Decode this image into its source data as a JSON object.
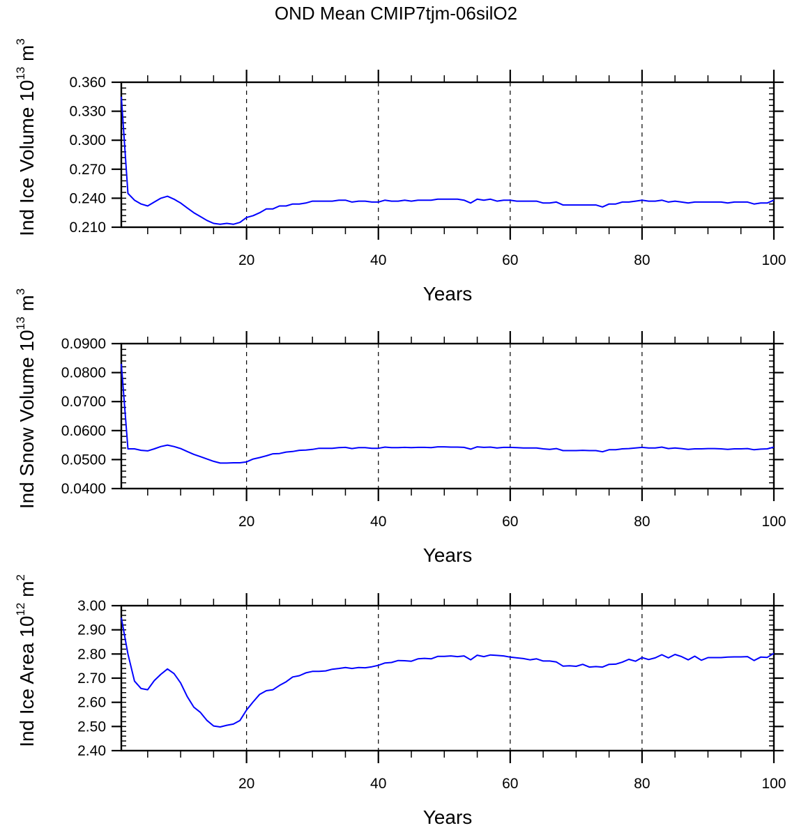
{
  "title": "OND Mean CMIP7tjm-06silO2",
  "line_color": "#0000ff",
  "chart_data": [
    {
      "type": "line",
      "title": "OND Mean CMIP7tjm-06silO2",
      "xlabel": "Years",
      "ylabel": "Ind Ice Volume 10",
      "ylabel_exp": "13",
      "ylabel_unit": " m",
      "ylabel_unit_exp": "3",
      "xlim": [
        1,
        100
      ],
      "ylim": [
        0.21,
        0.36
      ],
      "xticks": [
        20,
        40,
        60,
        80,
        100
      ],
      "xtick_labels": [
        "20",
        "40",
        "60",
        "80",
        "100"
      ],
      "yticks": [
        0.21,
        0.24,
        0.27,
        0.3,
        0.33,
        0.36
      ],
      "ytick_labels": [
        "0.210",
        "0.240",
        "0.270",
        "0.300",
        "0.330",
        "0.360"
      ],
      "yminor": 0.006,
      "xminor": 5,
      "vgrid": [
        20,
        40,
        60,
        80
      ],
      "values": [
        0.345,
        0.245,
        0.238,
        0.234,
        0.232,
        0.236,
        0.24,
        0.242,
        0.239,
        0.235,
        0.23,
        0.225,
        0.221,
        0.217,
        0.214,
        0.213,
        0.214,
        0.213,
        0.215,
        0.22,
        0.222,
        0.225,
        0.229,
        0.229,
        0.232,
        0.232,
        0.234,
        0.234,
        0.235,
        0.237,
        0.237,
        0.237,
        0.237,
        0.238,
        0.238,
        0.236,
        0.237,
        0.237,
        0.236,
        0.236,
        0.238,
        0.237,
        0.237,
        0.238,
        0.237,
        0.238,
        0.238,
        0.238,
        0.239,
        0.239,
        0.239,
        0.239,
        0.238,
        0.235,
        0.239,
        0.238,
        0.239,
        0.237,
        0.238,
        0.238,
        0.237,
        0.237,
        0.237,
        0.237,
        0.235,
        0.235,
        0.236,
        0.233,
        0.233,
        0.233,
        0.233,
        0.233,
        0.233,
        0.231,
        0.234,
        0.234,
        0.236,
        0.236,
        0.237,
        0.238,
        0.237,
        0.237,
        0.238,
        0.236,
        0.237,
        0.236,
        0.235,
        0.236,
        0.236,
        0.236,
        0.236,
        0.236,
        0.235,
        0.236,
        0.236,
        0.236,
        0.234,
        0.235,
        0.235,
        0.238
      ]
    },
    {
      "type": "line",
      "xlabel": "Years",
      "ylabel": "Ind Snow Volume 10",
      "ylabel_exp": "13",
      "ylabel_unit": " m",
      "ylabel_unit_exp": "3",
      "xlim": [
        1,
        100
      ],
      "ylim": [
        0.04,
        0.09
      ],
      "xticks": [
        20,
        40,
        60,
        80,
        100
      ],
      "xtick_labels": [
        "20",
        "40",
        "60",
        "80",
        "100"
      ],
      "yticks": [
        0.04,
        0.05,
        0.06,
        0.07,
        0.08,
        0.09
      ],
      "ytick_labels": [
        "0.0400",
        "0.0500",
        "0.0600",
        "0.0700",
        "0.0800",
        "0.0900"
      ],
      "yminor": 0.002,
      "xminor": 5,
      "vgrid": [
        20,
        40,
        60,
        80
      ],
      "values": [
        0.083,
        0.0537,
        0.0537,
        0.0532,
        0.053,
        0.0537,
        0.0545,
        0.055,
        0.0545,
        0.0538,
        0.0528,
        0.0518,
        0.051,
        0.0502,
        0.0494,
        0.0488,
        0.0488,
        0.0489,
        0.0489,
        0.0492,
        0.0502,
        0.0507,
        0.0513,
        0.052,
        0.0521,
        0.0526,
        0.0528,
        0.0532,
        0.0533,
        0.0535,
        0.0539,
        0.0539,
        0.0539,
        0.0541,
        0.0542,
        0.0538,
        0.0541,
        0.0541,
        0.0539,
        0.0539,
        0.0543,
        0.0541,
        0.0541,
        0.0542,
        0.0541,
        0.0542,
        0.0542,
        0.0541,
        0.0544,
        0.0544,
        0.0543,
        0.0543,
        0.0542,
        0.0536,
        0.0544,
        0.0542,
        0.0543,
        0.054,
        0.0542,
        0.0542,
        0.0541,
        0.054,
        0.054,
        0.054,
        0.0537,
        0.0535,
        0.0538,
        0.0531,
        0.0531,
        0.0531,
        0.0532,
        0.0531,
        0.0531,
        0.0527,
        0.0534,
        0.0534,
        0.0537,
        0.0538,
        0.054,
        0.0542,
        0.054,
        0.054,
        0.0543,
        0.0538,
        0.054,
        0.0538,
        0.0535,
        0.0537,
        0.0537,
        0.0538,
        0.0538,
        0.0537,
        0.0535,
        0.0537,
        0.0537,
        0.0538,
        0.0534,
        0.0536,
        0.0537,
        0.0543
      ]
    },
    {
      "type": "line",
      "xlabel": "Years",
      "ylabel": "Ind Ice Area 10",
      "ylabel_exp": "12",
      "ylabel_unit": " m",
      "ylabel_unit_exp": "2",
      "xlim": [
        1,
        100
      ],
      "ylim": [
        2.4,
        3.0
      ],
      "xticks": [
        20,
        40,
        60,
        80,
        100
      ],
      "xtick_labels": [
        "20",
        "40",
        "60",
        "80",
        "100"
      ],
      "yticks": [
        2.4,
        2.5,
        2.6,
        2.7,
        2.8,
        2.9,
        3.0
      ],
      "ytick_labels": [
        "2.40",
        "2.50",
        "2.60",
        "2.70",
        "2.80",
        "2.90",
        "3.00"
      ],
      "yminor": 0.02,
      "xminor": 5,
      "vgrid": [
        20,
        40,
        60,
        80
      ],
      "values": [
        2.95,
        2.8,
        2.688,
        2.657,
        2.652,
        2.69,
        2.716,
        2.738,
        2.719,
        2.68,
        2.624,
        2.58,
        2.558,
        2.525,
        2.502,
        2.498,
        2.505,
        2.51,
        2.525,
        2.568,
        2.602,
        2.633,
        2.648,
        2.652,
        2.67,
        2.685,
        2.705,
        2.71,
        2.722,
        2.728,
        2.728,
        2.73,
        2.737,
        2.74,
        2.744,
        2.74,
        2.744,
        2.743,
        2.747,
        2.753,
        2.763,
        2.765,
        2.773,
        2.772,
        2.77,
        2.78,
        2.782,
        2.78,
        2.79,
        2.79,
        2.792,
        2.789,
        2.792,
        2.776,
        2.795,
        2.789,
        2.796,
        2.794,
        2.792,
        2.787,
        2.784,
        2.781,
        2.776,
        2.78,
        2.771,
        2.771,
        2.767,
        2.75,
        2.751,
        2.749,
        2.757,
        2.746,
        2.748,
        2.746,
        2.757,
        2.758,
        2.766,
        2.778,
        2.77,
        2.785,
        2.777,
        2.784,
        2.797,
        2.784,
        2.798,
        2.789,
        2.776,
        2.791,
        2.774,
        2.785,
        2.785,
        2.785,
        2.787,
        2.788,
        2.788,
        2.789,
        2.773,
        2.787,
        2.786,
        2.803
      ]
    }
  ]
}
